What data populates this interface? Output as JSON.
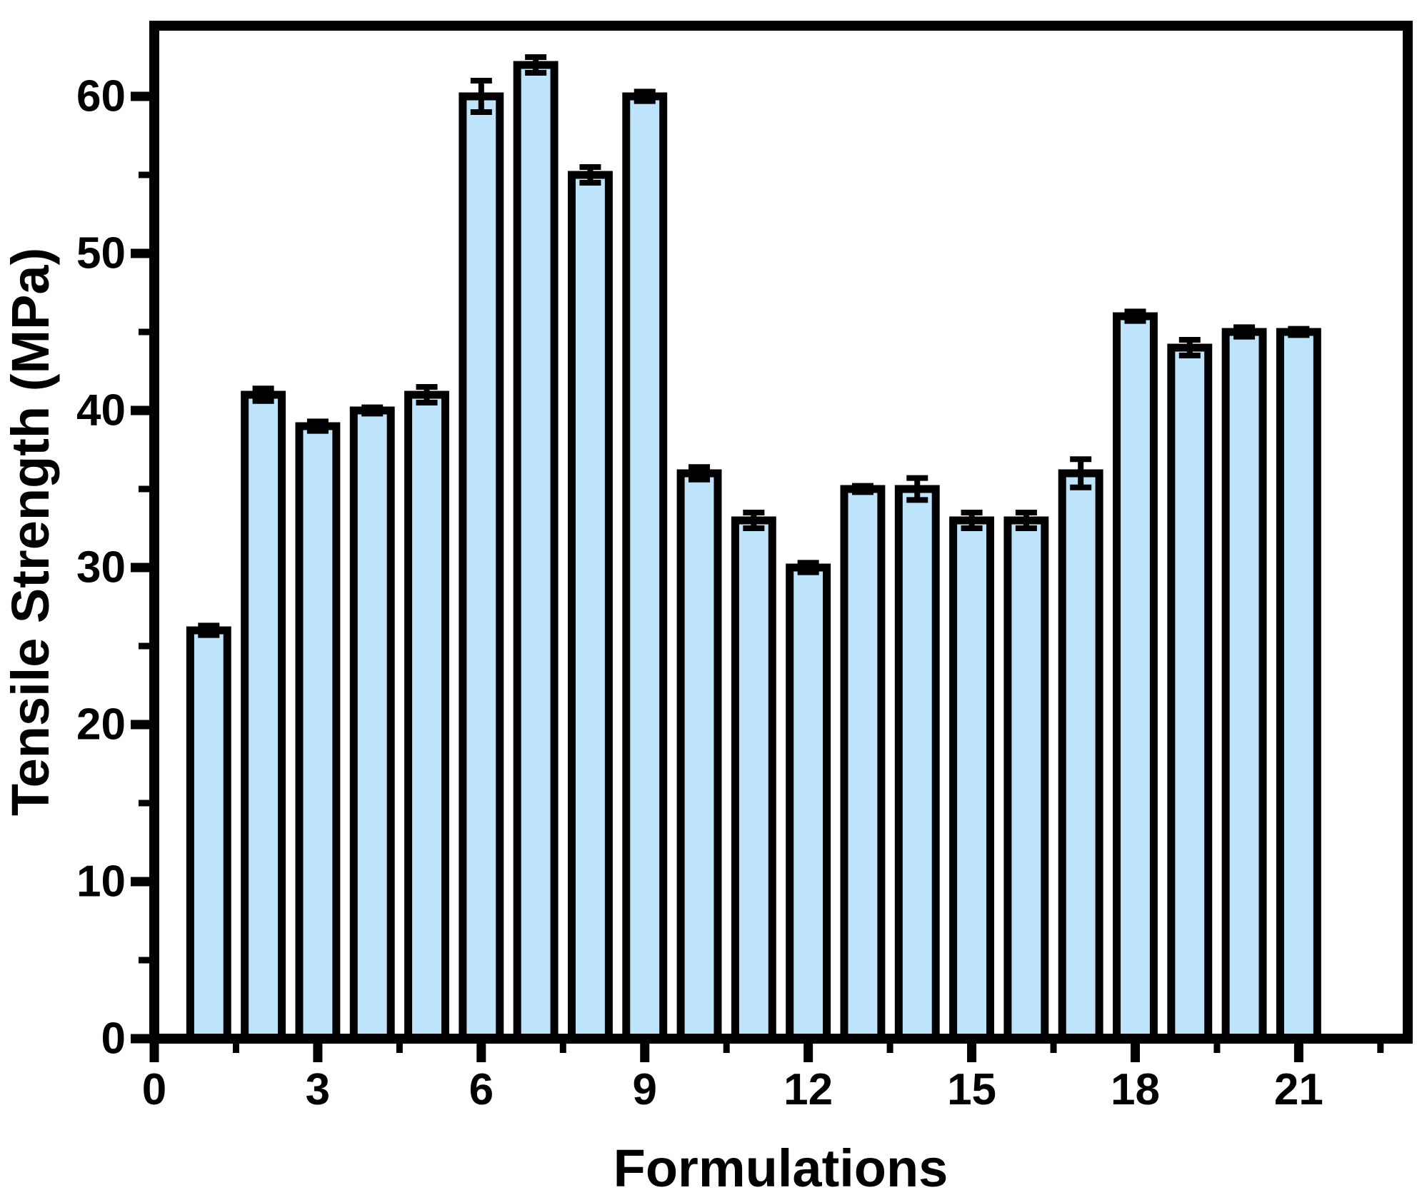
{
  "figure": {
    "background": "#FFFFFF"
  },
  "chart_data": {
    "type": "bar",
    "title": "",
    "xlabel": "Formulations",
    "ylabel": "Tensile Strength (MPa)",
    "x": [
      1,
      2,
      3,
      4,
      5,
      6,
      7,
      8,
      9,
      10,
      11,
      12,
      13,
      14,
      15,
      16,
      17,
      18,
      19,
      20,
      21
    ],
    "values": [
      26,
      41,
      39,
      40,
      41,
      60,
      62,
      55,
      60,
      36,
      33,
      30,
      35,
      35,
      33,
      33,
      36,
      46,
      44,
      45,
      45
    ],
    "errors": [
      0.3,
      0.4,
      0.3,
      0.2,
      0.5,
      1.0,
      0.5,
      0.5,
      0.3,
      0.4,
      0.5,
      0.3,
      0.2,
      0.7,
      0.5,
      0.5,
      0.9,
      0.3,
      0.5,
      0.3,
      0.2
    ],
    "xlim": [
      0,
      23
    ],
    "ylim": [
      0,
      64.5
    ],
    "xticks": [
      0,
      3,
      6,
      9,
      12,
      15,
      18,
      21
    ],
    "yticks": [
      0,
      10,
      20,
      30,
      40,
      50,
      60
    ],
    "x_minor_step": 1.5,
    "y_minor_step": 5,
    "bar_width": 0.68,
    "bar_fill": "#BDE4FB",
    "bar_edge": "#000000",
    "error_color": "#000000",
    "axis_color": "#000000",
    "grid": false,
    "legend": null
  }
}
